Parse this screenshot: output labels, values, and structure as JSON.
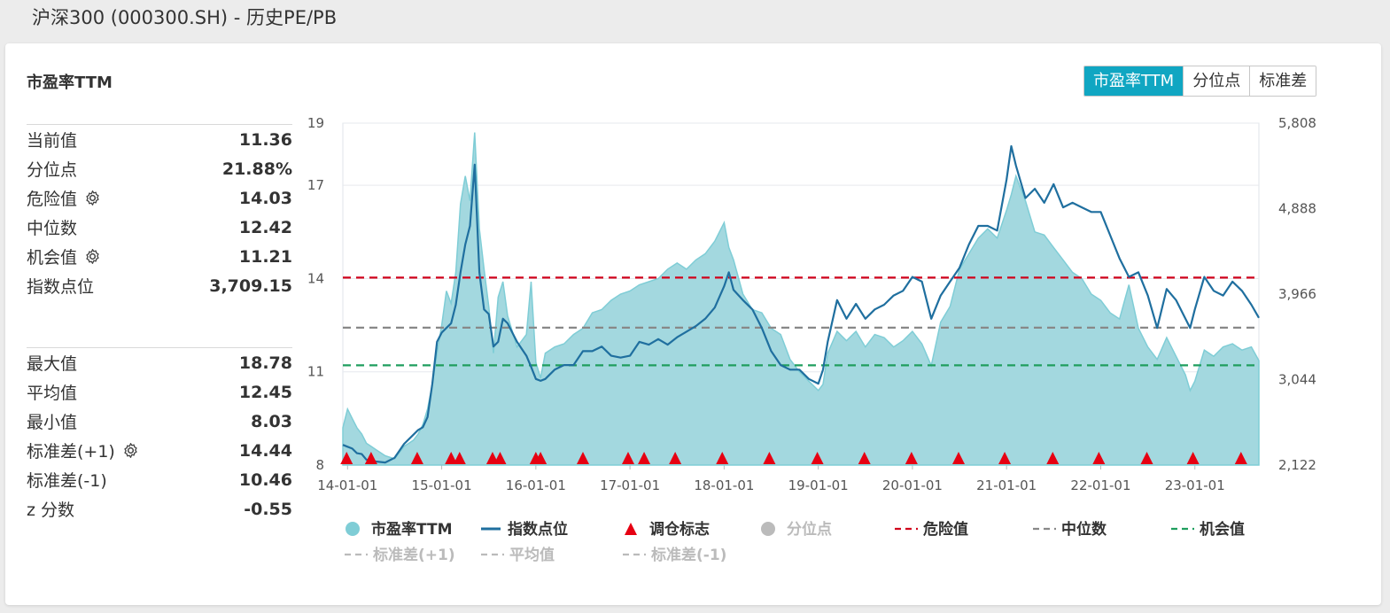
{
  "page": {
    "title": "沪深300 (000300.SH) - 历史PE/PB"
  },
  "card": {
    "title": "市盈率TTM"
  },
  "tabs": [
    {
      "label": "市盈率TTM",
      "active": true
    },
    {
      "label": "分位点",
      "active": false
    },
    {
      "label": "标准差",
      "active": false
    }
  ],
  "stats_top": [
    {
      "label": "当前值",
      "value": "11.36",
      "gear": false
    },
    {
      "label": "分位点",
      "value": "21.88%",
      "gear": false
    },
    {
      "label": "危险值",
      "value": "14.03",
      "gear": true
    },
    {
      "label": "中位数",
      "value": "12.42",
      "gear": false
    },
    {
      "label": "机会值",
      "value": "11.21",
      "gear": true
    },
    {
      "label": "指数点位",
      "value": "3,709.15",
      "gear": false
    }
  ],
  "stats_bottom": [
    {
      "label": "最大值",
      "value": "18.78",
      "gear": false
    },
    {
      "label": "平均值",
      "value": "12.45",
      "gear": false
    },
    {
      "label": "最小值",
      "value": "8.03",
      "gear": false
    },
    {
      "label": "标准差(+1)",
      "value": "14.44",
      "gear": true
    },
    {
      "label": "标准差(-1)",
      "value": "10.46",
      "gear": false
    },
    {
      "label": "z 分数",
      "value": "-0.55",
      "gear": false
    }
  ],
  "colors": {
    "area_fill": "#a3d8df",
    "area_stroke": "#7fcdd6",
    "index_line": "#1f6f9f",
    "marker": "#e60012",
    "danger": "#d0021b",
    "median": "#888888",
    "opportunity": "#1f9e5e",
    "disabled": "#bbbbbb",
    "tab_active": "#10a6c2"
  },
  "chart_data": {
    "type": "area",
    "x_tick_labels": [
      "14-01-01",
      "15-01-01",
      "16-01-01",
      "17-01-01",
      "18-01-01",
      "19-01-01",
      "20-01-01",
      "21-01-01",
      "22-01-01",
      "23-01-01"
    ],
    "x_ticks": [
      2014.0,
      2015.0,
      2016.0,
      2017.0,
      2018.0,
      2019.0,
      2020.0,
      2021.0,
      2022.0,
      2023.0
    ],
    "xlim": [
      2013.95,
      2023.68
    ],
    "y_left": {
      "ticks": [
        8,
        11,
        14,
        17,
        19
      ],
      "tick_labels": [
        "8",
        "11",
        "14",
        "17",
        "19"
      ],
      "lim": [
        8,
        19
      ]
    },
    "y_right": {
      "ticks": [
        2122,
        3044,
        3966,
        4888,
        5808
      ],
      "tick_labels": [
        "2,122",
        "3,044",
        "3,966",
        "4,888",
        "5,808"
      ],
      "lim": [
        2122,
        5808
      ]
    },
    "pe_series": {
      "name": "市盈率TTM",
      "x": [
        2013.95,
        2014.0,
        2014.05,
        2014.1,
        2014.15,
        2014.2,
        2014.25,
        2014.3,
        2014.4,
        2014.5,
        2014.6,
        2014.7,
        2014.75,
        2014.8,
        2014.85,
        2014.9,
        2014.95,
        2015.0,
        2015.05,
        2015.1,
        2015.15,
        2015.2,
        2015.25,
        2015.3,
        2015.35,
        2015.4,
        2015.45,
        2015.5,
        2015.55,
        2015.6,
        2015.65,
        2015.7,
        2015.8,
        2015.9,
        2015.95,
        2016.0,
        2016.05,
        2016.1,
        2016.2,
        2016.3,
        2016.4,
        2016.5,
        2016.6,
        2016.7,
        2016.8,
        2016.9,
        2017.0,
        2017.1,
        2017.2,
        2017.3,
        2017.4,
        2017.5,
        2017.6,
        2017.7,
        2017.8,
        2017.9,
        2018.0,
        2018.05,
        2018.1,
        2018.2,
        2018.3,
        2018.4,
        2018.5,
        2018.6,
        2018.7,
        2018.8,
        2018.9,
        2019.0,
        2019.05,
        2019.1,
        2019.2,
        2019.3,
        2019.4,
        2019.5,
        2019.6,
        2019.7,
        2019.8,
        2019.9,
        2020.0,
        2020.1,
        2020.2,
        2020.3,
        2020.4,
        2020.5,
        2020.6,
        2020.7,
        2020.8,
        2020.9,
        2021.0,
        2021.05,
        2021.1,
        2021.2,
        2021.3,
        2021.4,
        2021.5,
        2021.6,
        2021.7,
        2021.8,
        2021.9,
        2022.0,
        2022.1,
        2022.2,
        2022.3,
        2022.4,
        2022.5,
        2022.6,
        2022.7,
        2022.8,
        2022.9,
        2022.95,
        2023.0,
        2023.1,
        2023.2,
        2023.3,
        2023.4,
        2023.5,
        2023.6,
        2023.68
      ],
      "values": [
        9.2,
        9.8,
        9.5,
        9.2,
        9.0,
        8.7,
        8.6,
        8.5,
        8.3,
        8.2,
        8.6,
        8.8,
        9.0,
        9.3,
        9.8,
        10.6,
        11.6,
        12.5,
        13.6,
        13.2,
        14.2,
        16.4,
        17.3,
        16.5,
        18.7,
        15.6,
        14.3,
        13.1,
        11.6,
        13.4,
        13.9,
        12.8,
        11.8,
        12.2,
        13.9,
        11.3,
        10.8,
        11.6,
        11.8,
        11.9,
        12.2,
        12.4,
        12.9,
        13.0,
        13.3,
        13.5,
        13.6,
        13.8,
        13.9,
        14.0,
        14.3,
        14.5,
        14.3,
        14.6,
        14.8,
        15.2,
        15.8,
        15.0,
        14.6,
        13.5,
        13.0,
        12.9,
        12.4,
        12.2,
        11.4,
        11.0,
        10.7,
        10.4,
        10.6,
        11.6,
        12.3,
        12.0,
        12.3,
        11.8,
        12.2,
        12.1,
        11.8,
        12.0,
        12.3,
        11.9,
        11.2,
        12.6,
        13.1,
        14.3,
        14.8,
        15.3,
        15.6,
        15.3,
        16.2,
        16.7,
        17.3,
        16.5,
        15.5,
        15.4,
        15.0,
        14.6,
        14.2,
        14.0,
        13.5,
        13.3,
        12.9,
        12.7,
        13.8,
        12.4,
        11.8,
        11.4,
        12.1,
        11.5,
        10.9,
        10.4,
        10.7,
        11.7,
        11.5,
        11.8,
        11.9,
        11.7,
        11.8,
        11.36
      ]
    },
    "index_series": {
      "name": "指数点位",
      "x": [
        2013.95,
        2014.0,
        2014.05,
        2014.1,
        2014.15,
        2014.2,
        2014.25,
        2014.3,
        2014.4,
        2014.5,
        2014.6,
        2014.7,
        2014.75,
        2014.8,
        2014.85,
        2014.9,
        2014.95,
        2015.0,
        2015.05,
        2015.1,
        2015.15,
        2015.2,
        2015.25,
        2015.3,
        2015.35,
        2015.4,
        2015.45,
        2015.5,
        2015.55,
        2015.6,
        2015.65,
        2015.7,
        2015.8,
        2015.9,
        2015.95,
        2016.0,
        2016.05,
        2016.1,
        2016.2,
        2016.3,
        2016.4,
        2016.5,
        2016.6,
        2016.7,
        2016.8,
        2016.9,
        2017.0,
        2017.1,
        2017.2,
        2017.3,
        2017.4,
        2017.5,
        2017.6,
        2017.7,
        2017.8,
        2017.9,
        2018.0,
        2018.05,
        2018.1,
        2018.2,
        2018.3,
        2018.4,
        2018.5,
        2018.6,
        2018.7,
        2018.8,
        2018.9,
        2019.0,
        2019.05,
        2019.1,
        2019.2,
        2019.3,
        2019.4,
        2019.5,
        2019.6,
        2019.7,
        2019.8,
        2019.9,
        2020.0,
        2020.1,
        2020.2,
        2020.3,
        2020.4,
        2020.5,
        2020.6,
        2020.7,
        2020.8,
        2020.9,
        2021.0,
        2021.05,
        2021.1,
        2021.2,
        2021.3,
        2021.4,
        2021.5,
        2021.6,
        2021.7,
        2021.8,
        2021.9,
        2022.0,
        2022.1,
        2022.2,
        2022.3,
        2022.4,
        2022.5,
        2022.6,
        2022.7,
        2022.8,
        2022.9,
        2022.95,
        2023.0,
        2023.1,
        2023.2,
        2023.3,
        2023.4,
        2023.5,
        2023.6,
        2023.68
      ],
      "values": [
        2340,
        2320,
        2300,
        2250,
        2240,
        2180,
        2170,
        2160,
        2150,
        2200,
        2350,
        2450,
        2500,
        2530,
        2640,
        3000,
        3450,
        3550,
        3600,
        3650,
        3850,
        4200,
        4500,
        4700,
        5360,
        4200,
        3800,
        3750,
        3400,
        3450,
        3700,
        3650,
        3450,
        3300,
        3180,
        3050,
        3030,
        3050,
        3150,
        3200,
        3200,
        3350,
        3350,
        3400,
        3300,
        3280,
        3300,
        3450,
        3420,
        3480,
        3420,
        3500,
        3560,
        3620,
        3700,
        3820,
        4050,
        4200,
        4010,
        3900,
        3800,
        3600,
        3350,
        3200,
        3150,
        3150,
        3050,
        3000,
        3150,
        3450,
        3900,
        3700,
        3860,
        3700,
        3800,
        3850,
        3950,
        4000,
        4150,
        4100,
        3700,
        3950,
        4100,
        4250,
        4500,
        4700,
        4700,
        4650,
        5200,
        5560,
        5350,
        5000,
        5100,
        4950,
        5150,
        4900,
        4950,
        4900,
        4850,
        4850,
        4600,
        4350,
        4150,
        4200,
        3950,
        3600,
        4020,
        3900,
        3700,
        3600,
        3800,
        4150,
        4000,
        3950,
        4100,
        4000,
        3850,
        3709
      ]
    },
    "markers_x": [
      2013.99,
      2014.25,
      2014.74,
      2015.1,
      2015.19,
      2015.54,
      2015.62,
      2016.0,
      2016.05,
      2016.5,
      2016.98,
      2017.15,
      2017.48,
      2017.98,
      2018.48,
      2018.99,
      2019.49,
      2019.99,
      2020.49,
      2020.98,
      2021.49,
      2021.98,
      2022.49,
      2022.98,
      2023.49
    ],
    "reference_lines": [
      {
        "name": "危险值",
        "value": 14.03,
        "color_key": "danger"
      },
      {
        "name": "中位数",
        "value": 12.42,
        "color_key": "median"
      },
      {
        "name": "机会值",
        "value": 11.21,
        "color_key": "opportunity"
      }
    ],
    "legend": [
      {
        "label": "市盈率TTM",
        "kind": "circle",
        "color_key": "area_stroke",
        "enabled": true
      },
      {
        "label": "指数点位",
        "kind": "line",
        "color_key": "index_line",
        "enabled": true
      },
      {
        "label": "调仓标志",
        "kind": "triangle",
        "color_key": "marker",
        "enabled": true
      },
      {
        "label": "分位点",
        "kind": "circle",
        "color_key": "disabled",
        "enabled": false
      },
      {
        "label": "危险值",
        "kind": "dash",
        "color_key": "danger",
        "enabled": true
      },
      {
        "label": "中位数",
        "kind": "dash",
        "color_key": "median",
        "enabled": true
      },
      {
        "label": "机会值",
        "kind": "dash",
        "color_key": "opportunity",
        "enabled": true
      },
      {
        "label": "标准差(+1)",
        "kind": "dash",
        "color_key": "disabled",
        "enabled": false
      },
      {
        "label": "平均值",
        "kind": "dash",
        "color_key": "disabled",
        "enabled": false
      },
      {
        "label": "标准差(-1)",
        "kind": "dash",
        "color_key": "disabled",
        "enabled": false
      }
    ]
  }
}
